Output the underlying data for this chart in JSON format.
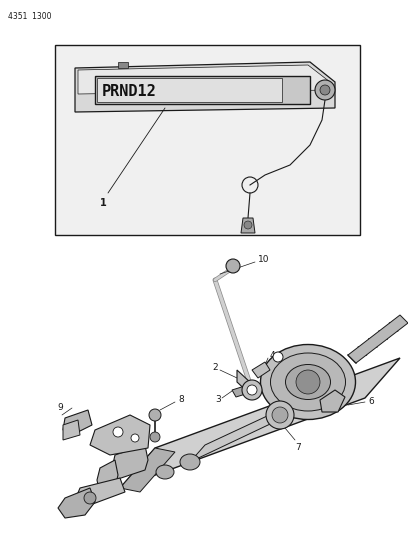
{
  "title_code": "4351  1300",
  "bg_color": "#ffffff",
  "line_color": "#1a1a1a",
  "fig_width": 4.08,
  "fig_height": 5.33,
  "dpi": 100
}
